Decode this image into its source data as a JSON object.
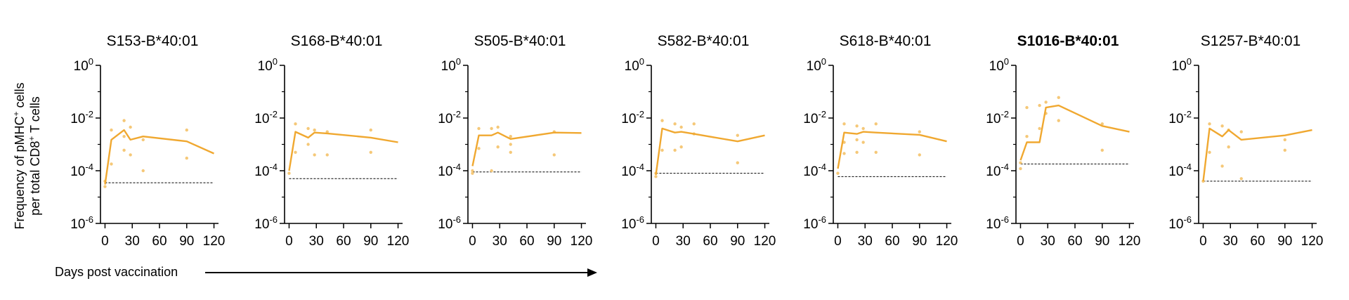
{
  "figure": {
    "ylabel_line1": "Frequency of pMHC",
    "ylabel_sup1": "+",
    "ylabel_line1_end": " cells",
    "ylabel_line2": "per total CD8",
    "ylabel_sup2": "+",
    "ylabel_line2_end": " T cells",
    "xlabel": "Days post vaccination",
    "line_color": "#f0a830",
    "point_color": "#f5c878"
  },
  "chart_data": [
    {
      "type": "line",
      "title": "S153-B*40:01",
      "title_bold": false,
      "yscale": "log",
      "ylim": [
        1e-06,
        1
      ],
      "xlim": [
        -5,
        125
      ],
      "xticks": [
        0,
        30,
        60,
        90,
        120
      ],
      "yticks": [
        {
          "base": "10",
          "exp": "0",
          "value": 1
        },
        {
          "base": "10",
          "exp": "-2",
          "value": 0.01
        },
        {
          "base": "10",
          "exp": "-4",
          "value": 0.0001
        },
        {
          "base": "10",
          "exp": "-6",
          "value": 1e-06
        }
      ],
      "line": {
        "x": [
          0,
          7,
          21,
          28,
          42,
          90,
          120
        ],
        "y": [
          3e-05,
          0.0015,
          0.0035,
          0.0015,
          0.002,
          0.0013,
          0.00045
        ]
      },
      "points": {
        "x": [
          0,
          0,
          7,
          7,
          21,
          21,
          21,
          28,
          28,
          42,
          42,
          90,
          90
        ],
        "y": [
          2.5e-05,
          4e-05,
          0.00018,
          0.0035,
          0.008,
          0.002,
          0.0006,
          0.0045,
          0.0004,
          0.0015,
          0.0001,
          0.0035,
          0.0003
        ]
      },
      "threshold": 3.5e-05
    },
    {
      "type": "line",
      "title": "S168-B*40:01",
      "title_bold": false,
      "yscale": "log",
      "ylim": [
        1e-06,
        1
      ],
      "xlim": [
        -5,
        125
      ],
      "xticks": [
        0,
        30,
        60,
        90,
        120
      ],
      "yticks": [
        {
          "base": "10",
          "exp": "0",
          "value": 1
        },
        {
          "base": "10",
          "exp": "-2",
          "value": 0.01
        },
        {
          "base": "10",
          "exp": "-4",
          "value": 0.0001
        },
        {
          "base": "10",
          "exp": "-6",
          "value": 1e-06
        }
      ],
      "line": {
        "x": [
          0,
          7,
          21,
          28,
          42,
          90,
          120
        ],
        "y": [
          0.0001,
          0.003,
          0.0018,
          0.0028,
          0.0026,
          0.0018,
          0.0012
        ]
      },
      "points": {
        "x": [
          0,
          7,
          7,
          21,
          21,
          28,
          28,
          42,
          42,
          90,
          90
        ],
        "y": [
          8e-05,
          0.006,
          0.0005,
          0.004,
          0.001,
          0.0035,
          0.0004,
          0.003,
          0.0004,
          0.0035,
          0.0005
        ]
      },
      "threshold": 5e-05
    },
    {
      "type": "line",
      "title": "S505-B*40:01",
      "title_bold": false,
      "yscale": "log",
      "ylim": [
        1e-06,
        1
      ],
      "xlim": [
        -5,
        125
      ],
      "xticks": [
        0,
        30,
        60,
        90,
        120
      ],
      "yticks": [
        {
          "base": "10",
          "exp": "0",
          "value": 1
        },
        {
          "base": "10",
          "exp": "-2",
          "value": 0.01
        },
        {
          "base": "10",
          "exp": "-4",
          "value": 0.0001
        },
        {
          "base": "10",
          "exp": "-6",
          "value": 1e-06
        }
      ],
      "line": {
        "x": [
          0,
          7,
          21,
          28,
          42,
          90,
          120
        ],
        "y": [
          0.00015,
          0.0022,
          0.0022,
          0.0028,
          0.0016,
          0.0028,
          0.0027
        ]
      },
      "points": {
        "x": [
          0,
          0,
          7,
          7,
          21,
          21,
          28,
          28,
          42,
          42,
          42,
          90,
          90
        ],
        "y": [
          0.0001,
          8e-05,
          0.004,
          0.0007,
          0.004,
          0.0001,
          0.0045,
          0.0008,
          0.002,
          0.001,
          0.0005,
          0.003,
          0.0004
        ]
      },
      "threshold": 9e-05
    },
    {
      "type": "line",
      "title": "S582-B*40:01",
      "title_bold": false,
      "yscale": "log",
      "ylim": [
        1e-06,
        1
      ],
      "xlim": [
        -5,
        125
      ],
      "xticks": [
        0,
        30,
        60,
        90,
        120
      ],
      "yticks": [
        {
          "base": "10",
          "exp": "0",
          "value": 1
        },
        {
          "base": "10",
          "exp": "-2",
          "value": 0.01
        },
        {
          "base": "10",
          "exp": "-4",
          "value": 0.0001
        },
        {
          "base": "10",
          "exp": "-6",
          "value": 1e-06
        }
      ],
      "line": {
        "x": [
          0,
          7,
          21,
          28,
          42,
          90,
          120
        ],
        "y": [
          7e-05,
          0.004,
          0.0028,
          0.003,
          0.0025,
          0.0013,
          0.0022
        ]
      },
      "points": {
        "x": [
          0,
          0,
          7,
          7,
          21,
          21,
          28,
          28,
          42,
          42,
          90,
          90
        ],
        "y": [
          6e-05,
          8e-05,
          0.008,
          0.0006,
          0.006,
          0.0006,
          0.0045,
          0.0008,
          0.006,
          0.0025,
          0.0022,
          0.0002
        ]
      },
      "threshold": 8e-05
    },
    {
      "type": "line",
      "title": "S618-B*40:01",
      "title_bold": false,
      "yscale": "log",
      "ylim": [
        1e-06,
        1
      ],
      "xlim": [
        -5,
        125
      ],
      "xticks": [
        0,
        30,
        60,
        90,
        120
      ],
      "yticks": [
        {
          "base": "10",
          "exp": "0",
          "value": 1
        },
        {
          "base": "10",
          "exp": "-2",
          "value": 0.01
        },
        {
          "base": "10",
          "exp": "-4",
          "value": 0.0001
        },
        {
          "base": "10",
          "exp": "-6",
          "value": 1e-06
        }
      ],
      "line": {
        "x": [
          0,
          7,
          21,
          28,
          42,
          90,
          120
        ],
        "y": [
          0.00012,
          0.0028,
          0.0025,
          0.003,
          0.0028,
          0.0023,
          0.0013
        ]
      },
      "points": {
        "x": [
          0,
          7,
          7,
          7,
          21,
          21,
          21,
          28,
          28,
          42,
          42,
          90,
          90
        ],
        "y": [
          8e-05,
          0.006,
          0.0012,
          0.00045,
          0.005,
          0.0015,
          0.0005,
          0.004,
          0.0012,
          0.006,
          0.0005,
          0.003,
          0.0004
        ]
      },
      "threshold": 6e-05
    },
    {
      "type": "line",
      "title": "S1016-B*40:01",
      "title_bold": true,
      "yscale": "log",
      "ylim": [
        1e-06,
        1
      ],
      "xlim": [
        -5,
        125
      ],
      "xticks": [
        0,
        30,
        60,
        90,
        120
      ],
      "yticks": [
        {
          "base": "10",
          "exp": "0",
          "value": 1
        },
        {
          "base": "10",
          "exp": "-2",
          "value": 0.01
        },
        {
          "base": "10",
          "exp": "-4",
          "value": 0.0001
        },
        {
          "base": "10",
          "exp": "-6",
          "value": 1e-06
        }
      ],
      "line": {
        "x": [
          0,
          7,
          21,
          28,
          42,
          90,
          120
        ],
        "y": [
          0.00025,
          0.0012,
          0.0012,
          0.025,
          0.03,
          0.005,
          0.003
        ]
      },
      "points": {
        "x": [
          0,
          0,
          7,
          7,
          21,
          21,
          28,
          28,
          42,
          42,
          90,
          90
        ],
        "y": [
          0.0002,
          0.00012,
          0.025,
          0.002,
          0.03,
          0.004,
          0.04,
          0.015,
          0.06,
          0.008,
          0.006,
          0.0006
        ]
      },
      "threshold": 0.00018
    },
    {
      "type": "line",
      "title": "S1257-B*40:01",
      "title_bold": false,
      "yscale": "log",
      "ylim": [
        1e-06,
        1
      ],
      "xlim": [
        -5,
        125
      ],
      "xticks": [
        0,
        30,
        60,
        90,
        120
      ],
      "yticks": [
        {
          "base": "10",
          "exp": "0",
          "value": 1
        },
        {
          "base": "10",
          "exp": "-2",
          "value": 0.01
        },
        {
          "base": "10",
          "exp": "-4",
          "value": 0.0001
        },
        {
          "base": "10",
          "exp": "-6",
          "value": 1e-06
        }
      ],
      "line": {
        "x": [
          0,
          7,
          21,
          28,
          42,
          90,
          120
        ],
        "y": [
          4e-05,
          0.004,
          0.002,
          0.0035,
          0.0015,
          0.0022,
          0.0035
        ]
      },
      "points": {
        "x": [
          0,
          7,
          7,
          21,
          21,
          28,
          28,
          42,
          42,
          90,
          90
        ],
        "y": [
          4e-05,
          0.006,
          0.0005,
          0.005,
          0.00015,
          0.0035,
          0.0008,
          0.003,
          5e-05,
          0.0015,
          0.0006
        ]
      },
      "threshold": 4e-05
    }
  ]
}
